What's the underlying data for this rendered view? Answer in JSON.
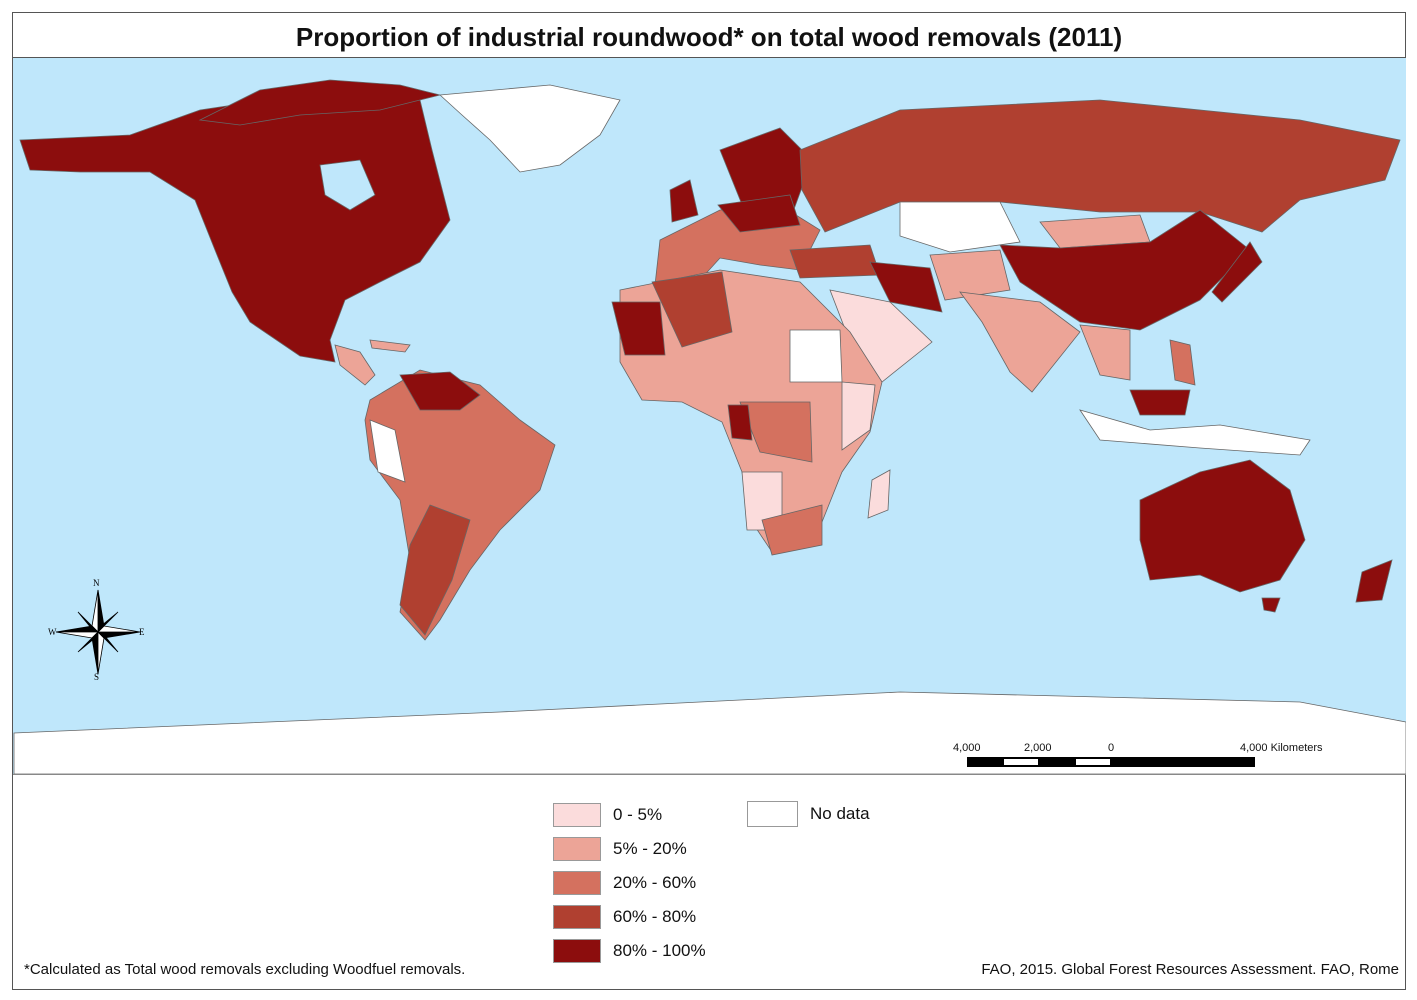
{
  "title": "Proportion of industrial roundwood* on total wood removals (2011)",
  "legend": {
    "classes": [
      {
        "label": "0 - 5%",
        "color": "#fbdcdc"
      },
      {
        "label": "5% - 20%",
        "color": "#eca497"
      },
      {
        "label": "20% - 60%",
        "color": "#d4715f"
      },
      {
        "label": "60% - 80%",
        "color": "#b04030"
      },
      {
        "label": "80% - 100%",
        "color": "#8c0d0d"
      }
    ],
    "no_data": {
      "label": "No data",
      "color": "#ffffff"
    }
  },
  "scale_bar": {
    "labels": [
      "4,000",
      "2,000",
      "0",
      "4,000 Kilometers"
    ]
  },
  "compass": {
    "n": "N",
    "s": "S",
    "e": "E",
    "w": "W"
  },
  "footnote_left": "*Calculated as Total wood removals excluding Woodfuel removals.",
  "footnote_right": "FAO, 2015. Global Forest Resources Assessment. FAO, Rome",
  "colors": {
    "ocean": "#bfe7fb",
    "border": "#666666"
  }
}
